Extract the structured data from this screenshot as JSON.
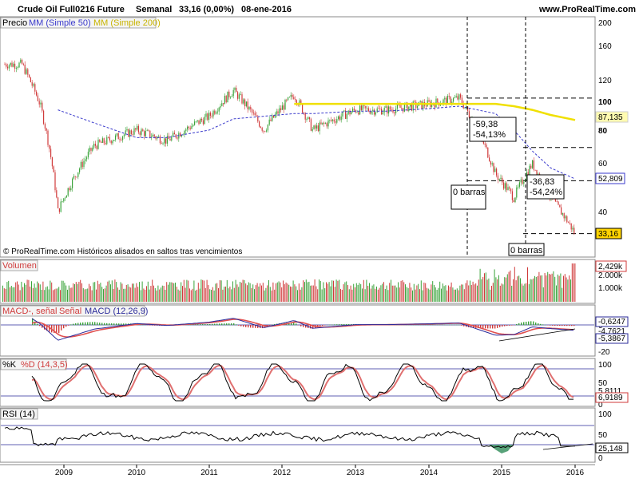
{
  "header": {
    "instrument": "Crude Oil Full0216 Future",
    "period": "Semanal",
    "quote": "33,16 (0,00%)",
    "date": "08-ene-2016",
    "site": "www.ProRealTime.com"
  },
  "panels": {
    "price": {
      "label": "Precio",
      "ma50_label": "MM (Simple 50)",
      "ma200_label": "MM (Simple 200)",
      "footer": "© ProRealTime.com Históricos alisados en saltos tras vencimientos",
      "axis_ticks": [
        "200",
        "160",
        "120",
        "100",
        "80",
        "60",
        "40"
      ],
      "tags": {
        "ma200": "87,135",
        "ma50": "52,809",
        "last": "33,16"
      }
    },
    "volume": {
      "label": "Volumen",
      "axis_ticks": [
        "2.000k",
        "1.000k"
      ],
      "tag": "2,429k"
    },
    "macd": {
      "label_a": "MACD-, señal",
      "label_b": "Señal",
      "label_c": "MACD (12,26,9)",
      "axis_ticks": [
        "0",
        "-20"
      ],
      "tags": {
        "macd": "-0,6247",
        "signal": "-4,7621",
        "hist": "-5,3867"
      }
    },
    "stoch": {
      "label_k": "%K",
      "label_d": "%D (14,3,5)",
      "axis_ticks": [
        "100",
        "50",
        "0"
      ],
      "tags": {
        "k": "5,8111",
        "d": "6,9189"
      }
    },
    "rsi": {
      "label": "RSI (14)",
      "axis_ticks": [
        "100",
        "50",
        "0"
      ],
      "tag": "25,148"
    }
  },
  "annotations": {
    "box1": {
      "change": "-59,38",
      "pct": "-54,13%"
    },
    "box2": {
      "change": "-36,83",
      "pct": "-54,24%"
    },
    "bars1": "0 barras",
    "bars2": "0 barras"
  },
  "x_labels": [
    "2009",
    "2010",
    "2011",
    "2012",
    "2013",
    "2014",
    "2015",
    "2016"
  ],
  "colors": {
    "up": "#3aa33a",
    "down": "#d03a3a",
    "ma200": "#f0e000",
    "ma50": "#3a3acc",
    "rsi_fill": "#2e8b57"
  },
  "chart_data": {
    "type": "line",
    "title": "Crude Oil Full0216 Future",
    "x": [
      "2008-06",
      "2008-09",
      "2008-12",
      "2009-06",
      "2010-01",
      "2010-06",
      "2011-01",
      "2011-05",
      "2011-10",
      "2012-03",
      "2012-06",
      "2013-01",
      "2013-06",
      "2014-01",
      "2014-06",
      "2014-12",
      "2015-03",
      "2015-06",
      "2015-09",
      "2016-01"
    ],
    "series": [
      {
        "name": "Precio",
        "values": [
          140,
          100,
          40,
          70,
          80,
          73,
          90,
          112,
          80,
          108,
          80,
          95,
          95,
          100,
          105,
          55,
          45,
          60,
          45,
          33.16
        ]
      },
      {
        "name": "MM (Simple 50)",
        "values": [
          null,
          null,
          95,
          85,
          75,
          75,
          80,
          88,
          90,
          92,
          92,
          94,
          94,
          96,
          98,
          92,
          80,
          67,
          58,
          52.809
        ]
      },
      {
        "name": "MM (Simple 200)",
        "values": [
          null,
          null,
          null,
          null,
          null,
          null,
          null,
          null,
          null,
          100,
          100,
          100,
          100,
          100,
          100,
          100,
          98,
          95,
          91,
          87.135
        ]
      }
    ],
    "ylim": [
      30,
      200
    ],
    "yscale": "log",
    "grid": false
  }
}
